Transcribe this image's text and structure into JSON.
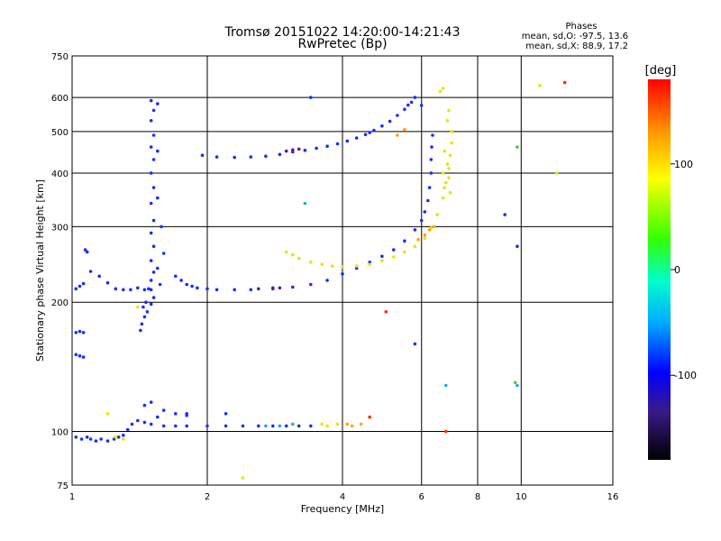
{
  "chart_data": {
    "type": "scatter",
    "title": "Tromsø 20151022 14:20:00-14:21:43",
    "subtitle": "RwPretec (Bp)",
    "xlabel": "Frequency [MHz]",
    "ylabel": "Stationary phase Virtual Height [km]",
    "x_scale": "log",
    "y_scale": "log",
    "xlim": [
      1,
      16
    ],
    "ylim": [
      75,
      750
    ],
    "xticks": [
      1,
      2,
      4,
      6,
      8,
      10,
      16
    ],
    "xtick_labels": [
      "1",
      "2",
      "4",
      "6",
      "8",
      "10",
      "16"
    ],
    "yticks": [
      75,
      100,
      200,
      300,
      400,
      500,
      600,
      750
    ],
    "ytick_labels": [
      "75",
      "100",
      "200",
      "300",
      "400",
      "500",
      "600",
      "750"
    ],
    "grid": true,
    "stats_header": "Phases",
    "stats_line1": "mean, sd,O:  -97.5, 13.6",
    "stats_line2": "mean, sd,X:  88.9, 17.2",
    "colorbar": {
      "label": "[deg]",
      "ticks": [
        100,
        0,
        -100
      ],
      "tick_labels": [
        "100",
        "0",
        "-100"
      ],
      "range": [
        -180,
        180
      ]
    },
    "colors": {
      "blue": "#1a2dff",
      "darkblue": "#2a2acc",
      "purple": "#5a1a9a",
      "cyan": "#22aadd",
      "yellow": "#e6e600",
      "orange": "#ffa500",
      "red": "#ff2a00",
      "green": "#44cc44"
    },
    "series": [
      {
        "color": "blue",
        "points": [
          [
            1.02,
            97
          ],
          [
            1.05,
            96
          ],
          [
            1.08,
            97
          ],
          [
            1.1,
            96
          ],
          [
            1.13,
            95
          ],
          [
            1.16,
            96
          ],
          [
            1.2,
            95
          ],
          [
            1.24,
            96
          ],
          [
            1.27,
            97
          ],
          [
            1.3,
            98
          ],
          [
            1.33,
            101
          ],
          [
            1.36,
            104
          ],
          [
            1.4,
            106
          ],
          [
            1.45,
            105
          ],
          [
            1.5,
            104
          ],
          [
            1.6,
            103
          ],
          [
            1.7,
            103
          ],
          [
            1.8,
            103
          ],
          [
            2.0,
            103
          ],
          [
            2.2,
            103
          ],
          [
            2.4,
            103
          ],
          [
            2.6,
            103
          ],
          [
            2.8,
            103
          ],
          [
            3.0,
            103
          ],
          [
            3.2,
            103
          ],
          [
            3.4,
            103
          ],
          [
            1.55,
            108
          ],
          [
            1.6,
            112
          ],
          [
            1.7,
            110
          ],
          [
            1.8,
            109
          ],
          [
            1.45,
            115
          ],
          [
            1.5,
            117
          ]
        ]
      },
      {
        "color": "cyan",
        "points": [
          [
            2.7,
            103
          ],
          [
            2.9,
            103
          ],
          [
            3.1,
            104
          ]
        ]
      },
      {
        "color": "yellow",
        "points": [
          [
            3.6,
            104
          ],
          [
            3.7,
            103
          ],
          [
            3.9,
            104
          ],
          [
            1.25,
            97
          ],
          [
            1.3,
            96
          ]
        ]
      },
      {
        "color": "orange",
        "points": [
          [
            4.1,
            104
          ],
          [
            4.2,
            103
          ],
          [
            4.4,
            104
          ]
        ]
      },
      {
        "color": "blue",
        "points": [
          [
            1.02,
            215
          ],
          [
            1.04,
            218
          ],
          [
            1.06,
            221
          ],
          [
            1.1,
            236
          ],
          [
            1.15,
            230
          ],
          [
            1.2,
            222
          ],
          [
            1.25,
            215
          ],
          [
            1.3,
            214
          ],
          [
            1.35,
            214
          ],
          [
            1.4,
            216
          ],
          [
            1.45,
            214
          ],
          [
            1.5,
            214
          ],
          [
            1.02,
            170
          ],
          [
            1.04,
            171
          ],
          [
            1.06,
            170
          ],
          [
            1.02,
            151
          ],
          [
            1.04,
            150
          ],
          [
            1.06,
            149
          ],
          [
            1.07,
            265
          ],
          [
            1.08,
            262
          ]
        ]
      },
      {
        "color": "blue",
        "points": [
          [
            1.5,
            590
          ],
          [
            1.52,
            560
          ],
          [
            1.5,
            530
          ],
          [
            1.52,
            490
          ],
          [
            1.5,
            460
          ],
          [
            1.52,
            430
          ],
          [
            1.5,
            400
          ],
          [
            1.52,
            370
          ],
          [
            1.5,
            340
          ],
          [
            1.52,
            310
          ],
          [
            1.5,
            290
          ],
          [
            1.52,
            270
          ],
          [
            1.5,
            250
          ],
          [
            1.52,
            235
          ],
          [
            1.5,
            225
          ],
          [
            1.48,
            215
          ],
          [
            1.52,
            205
          ],
          [
            1.5,
            198
          ],
          [
            1.47,
            190
          ],
          [
            1.45,
            185
          ],
          [
            1.43,
            178
          ],
          [
            1.42,
            172
          ],
          [
            1.55,
            580
          ],
          [
            1.55,
            450
          ],
          [
            1.55,
            350
          ],
          [
            1.58,
            300
          ],
          [
            1.6,
            260
          ],
          [
            1.55,
            240
          ],
          [
            1.57,
            220
          ],
          [
            1.46,
            200
          ],
          [
            1.44,
            195
          ]
        ]
      },
      {
        "color": "blue",
        "points": [
          [
            1.7,
            230
          ],
          [
            1.75,
            225
          ],
          [
            1.8,
            220
          ],
          [
            1.85,
            218
          ],
          [
            1.9,
            216
          ],
          [
            2.0,
            215
          ],
          [
            2.1,
            214
          ],
          [
            2.3,
            214
          ],
          [
            2.5,
            214
          ],
          [
            2.8,
            215
          ],
          [
            3.1,
            217
          ],
          [
            3.4,
            220
          ],
          [
            3.7,
            225
          ],
          [
            4.0,
            233
          ],
          [
            4.3,
            240
          ],
          [
            4.6,
            248
          ],
          [
            4.9,
            256
          ],
          [
            5.2,
            265
          ],
          [
            5.5,
            278
          ],
          [
            5.8,
            295
          ],
          [
            6.0,
            310
          ],
          [
            6.1,
            325
          ],
          [
            6.2,
            345
          ],
          [
            6.25,
            370
          ],
          [
            6.3,
            400
          ],
          [
            6.3,
            430
          ],
          [
            6.32,
            460
          ],
          [
            6.35,
            490
          ]
        ]
      },
      {
        "color": "purple",
        "points": [
          [
            2.6,
            215
          ],
          [
            2.8,
            216
          ],
          [
            2.9,
            216
          ]
        ]
      },
      {
        "color": "blue",
        "points": [
          [
            1.95,
            440
          ],
          [
            2.1,
            436
          ],
          [
            2.3,
            435
          ],
          [
            2.5,
            436
          ],
          [
            2.7,
            438
          ],
          [
            2.9,
            442
          ],
          [
            3.1,
            448
          ],
          [
            3.3,
            452
          ],
          [
            3.5,
            457
          ],
          [
            3.7,
            462
          ],
          [
            3.9,
            468
          ],
          [
            4.1,
            475
          ],
          [
            4.3,
            483
          ],
          [
            4.5,
            492
          ],
          [
            4.7,
            503
          ],
          [
            4.9,
            515
          ],
          [
            5.1,
            528
          ],
          [
            5.3,
            545
          ],
          [
            5.5,
            563
          ],
          [
            5.7,
            585
          ],
          [
            5.8,
            600
          ],
          [
            5.6,
            576
          ],
          [
            4.6,
            497
          ]
        ]
      },
      {
        "color": "purple",
        "points": [
          [
            3.0,
            450
          ],
          [
            3.1,
            453
          ],
          [
            3.2,
            455
          ]
        ]
      },
      {
        "color": "yellow",
        "points": [
          [
            3.0,
            262
          ],
          [
            3.1,
            258
          ],
          [
            3.2,
            253
          ],
          [
            3.4,
            248
          ],
          [
            3.6,
            245
          ],
          [
            3.8,
            243
          ],
          [
            4.0,
            242
          ],
          [
            4.3,
            243
          ],
          [
            4.6,
            245
          ],
          [
            4.9,
            250
          ],
          [
            5.2,
            255
          ],
          [
            5.5,
            262
          ],
          [
            5.8,
            270
          ],
          [
            6.1,
            282
          ],
          [
            6.3,
            298
          ],
          [
            6.5,
            320
          ],
          [
            6.7,
            350
          ],
          [
            6.8,
            380
          ],
          [
            6.9,
            410
          ],
          [
            6.95,
            440
          ],
          [
            7.0,
            470
          ],
          [
            7.0,
            500
          ],
          [
            6.85,
            530
          ],
          [
            6.9,
            560
          ],
          [
            6.6,
            620
          ],
          [
            6.7,
            630
          ],
          [
            6.75,
            450
          ],
          [
            6.85,
            420
          ],
          [
            6.9,
            390
          ],
          [
            6.95,
            360
          ],
          [
            6.7,
            400
          ],
          [
            6.75,
            370
          ]
        ]
      },
      {
        "color": "orange",
        "points": [
          [
            5.9,
            280
          ],
          [
            6.1,
            287
          ],
          [
            6.25,
            295
          ],
          [
            6.4,
            300
          ],
          [
            5.3,
            490
          ],
          [
            5.5,
            505
          ]
        ]
      },
      {
        "color": "blue",
        "points": [
          [
            3.4,
            600
          ],
          [
            6.0,
            575
          ],
          [
            9.2,
            320
          ],
          [
            9.8,
            270
          ],
          [
            5.8,
            160
          ],
          [
            1.8,
            110
          ],
          [
            2.2,
            110
          ]
        ]
      },
      {
        "color": "cyan",
        "points": [
          [
            3.3,
            340
          ],
          [
            6.8,
            128
          ],
          [
            9.8,
            128
          ]
        ]
      },
      {
        "color": "red",
        "points": [
          [
            12.5,
            650
          ],
          [
            5.0,
            190
          ],
          [
            6.8,
            100
          ],
          [
            4.6,
            108
          ]
        ]
      },
      {
        "color": "yellow",
        "points": [
          [
            11.0,
            640
          ],
          [
            1.4,
            195
          ],
          [
            1.2,
            110
          ],
          [
            2.4,
            78
          ],
          [
            12.0,
            400
          ]
        ]
      },
      {
        "color": "green",
        "points": [
          [
            9.8,
            460
          ],
          [
            9.7,
            130
          ]
        ]
      }
    ]
  }
}
